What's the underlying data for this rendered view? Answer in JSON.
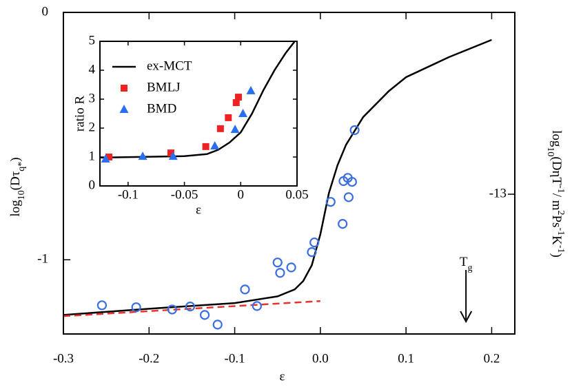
{
  "chart_data": [
    {
      "type": "line",
      "xlabel": "ε",
      "ylabel": [
        "log",
        "10",
        "(Dτ",
        "q*",
        ")"
      ],
      "y2label": [
        "log",
        "10",
        "(DηT",
        "-1",
        "/ m",
        "2",
        "Ps",
        "-1",
        "K",
        "-1",
        ")"
      ],
      "xlim": [
        -0.3,
        0.227
      ],
      "ylim": [
        -1.3,
        0
      ],
      "y2lim": [
        -13.565,
        -12.265
      ],
      "xticks": [
        -0.3,
        -0.2,
        -0.1,
        {
          "value": 0,
          "label": "0.0"
        },
        0.1,
        0.2
      ],
      "yticks": [
        0,
        -1
      ],
      "y2ticks": [
        -13
      ],
      "series": [
        {
          "color": "#000000",
          "style": "solid",
          "x": [
            -0.3,
            -0.2,
            -0.1,
            -0.05,
            -0.03,
            -0.02,
            -0.01,
            0,
            0.01,
            0.02,
            0.03,
            0.05,
            0.08,
            0.1,
            0.15,
            0.2
          ],
          "values": [
            -1.223,
            -1.198,
            -1.175,
            -1.148,
            -1.12,
            -1.086,
            -1.022,
            -0.897,
            -0.73,
            -0.618,
            -0.535,
            -0.423,
            -0.318,
            -0.262,
            -0.181,
            -0.111
          ]
        },
        {
          "color": "#e8322c",
          "style": "dashed",
          "x": [
            -0.3,
            0
          ],
          "values": [
            -1.228,
            -1.167
          ]
        },
        {
          "color": "#3b6fe0",
          "marker": "circle",
          "x": [
            -0.255,
            -0.215,
            -0.173,
            -0.152,
            -0.135,
            -0.12,
            -0.088,
            -0.074,
            -0.05,
            -0.047,
            -0.034,
            -0.01,
            -0.007,
            0.012,
            0.026,
            0.027,
            0.032,
            0.037,
            0.033,
            0.04
          ],
          "values": [
            -1.184,
            -1.192,
            -1.201,
            -1.189,
            -1.223,
            -1.262,
            -1.12,
            -1.187,
            -1.011,
            -1.053,
            -1.031,
            -0.969,
            -0.93,
            -0.766,
            -0.855,
            -0.682,
            -0.669,
            -0.685,
            -0.747,
            -0.476
          ]
        }
      ],
      "annotation": {
        "text": [
          "T",
          "g"
        ],
        "x": 0.17
      }
    },
    {
      "type": "line",
      "xlabel": "ε",
      "ylabel": "ratio R",
      "xlim": [
        -0.125,
        0.05
      ],
      "ylim": [
        0,
        5
      ],
      "xticks": [
        -0.1,
        -0.05,
        0,
        0.05
      ],
      "yticks": [
        0,
        1,
        2,
        3,
        4,
        5
      ],
      "series": [
        {
          "name": "ex-MCT",
          "color": "#000000",
          "style": "solid",
          "x": [
            -0.125,
            -0.05,
            -0.03,
            -0.02,
            -0.01,
            0,
            0.01,
            0.02,
            0.03,
            0.04,
            0.048
          ],
          "values": [
            0.98,
            1.03,
            1.1,
            1.25,
            1.5,
            1.85,
            2.5,
            3.3,
            4.0,
            4.6,
            5.0
          ]
        },
        {
          "name": "BMLJ",
          "color": "#ee2222",
          "marker": "square",
          "x": [
            -0.117,
            -0.062,
            -0.031,
            -0.018,
            -0.011,
            -0.004,
            -0.002
          ],
          "values": [
            1.0,
            1.14,
            1.36,
            1.98,
            2.36,
            2.88,
            3.07
          ]
        },
        {
          "name": "BMD",
          "color": "#2a6ff0",
          "marker": "triangle",
          "x": [
            -0.12,
            -0.087,
            -0.06,
            -0.023,
            -0.005,
            0.002,
            0.009
          ],
          "values": [
            0.93,
            1.02,
            1.02,
            1.38,
            1.95,
            2.5,
            3.29
          ]
        }
      ]
    }
  ]
}
